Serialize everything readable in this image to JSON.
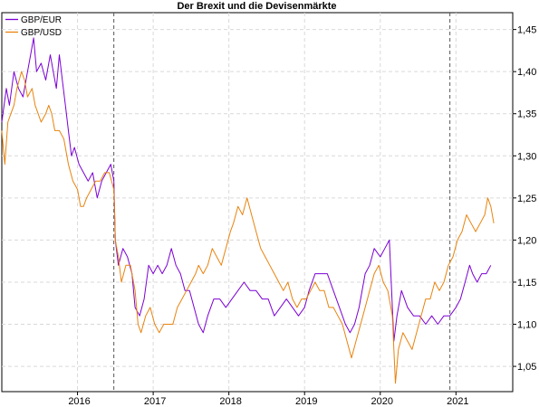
{
  "chart_data": {
    "type": "line",
    "title": "Der Brexit und die Devisenmärkte",
    "xlabel": "",
    "ylabel": "",
    "x_ticks": [
      "2016",
      "2017",
      "2018",
      "2019",
      "2020",
      "2021"
    ],
    "y_ticks": [
      "1,05",
      "1,10",
      "1,15",
      "1,20",
      "1,25",
      "1,30",
      "1,35",
      "1,40",
      "1,45"
    ],
    "ylim": [
      1.02,
      1.47
    ],
    "xlim": [
      2015.0,
      2021.75
    ],
    "y_axis_position": "right",
    "grid": true,
    "legend_position": "top-left",
    "events": [
      2016.48,
      2020.92
    ],
    "series": [
      {
        "name": "GBP/EUR",
        "color": "#7b00d4",
        "points": [
          [
            2015.0,
            1.34
          ],
          [
            2015.06,
            1.38
          ],
          [
            2015.1,
            1.36
          ],
          [
            2015.16,
            1.4
          ],
          [
            2015.22,
            1.38
          ],
          [
            2015.28,
            1.37
          ],
          [
            2015.34,
            1.4
          ],
          [
            2015.38,
            1.42
          ],
          [
            2015.42,
            1.44
          ],
          [
            2015.46,
            1.4
          ],
          [
            2015.52,
            1.41
          ],
          [
            2015.58,
            1.39
          ],
          [
            2015.64,
            1.42
          ],
          [
            2015.68,
            1.4
          ],
          [
            2015.72,
            1.38
          ],
          [
            2015.76,
            1.42
          ],
          [
            2015.8,
            1.39
          ],
          [
            2015.84,
            1.36
          ],
          [
            2015.88,
            1.33
          ],
          [
            2015.92,
            1.3
          ],
          [
            2015.96,
            1.31
          ],
          [
            2016.02,
            1.29
          ],
          [
            2016.08,
            1.28
          ],
          [
            2016.14,
            1.27
          ],
          [
            2016.2,
            1.28
          ],
          [
            2016.26,
            1.25
          ],
          [
            2016.32,
            1.27
          ],
          [
            2016.38,
            1.28
          ],
          [
            2016.44,
            1.29
          ],
          [
            2016.48,
            1.27
          ],
          [
            2016.5,
            1.2
          ],
          [
            2016.54,
            1.17
          ],
          [
            2016.6,
            1.19
          ],
          [
            2016.66,
            1.18
          ],
          [
            2016.72,
            1.16
          ],
          [
            2016.76,
            1.12
          ],
          [
            2016.82,
            1.11
          ],
          [
            2016.88,
            1.13
          ],
          [
            2016.94,
            1.17
          ],
          [
            2017.0,
            1.16
          ],
          [
            2017.06,
            1.17
          ],
          [
            2017.12,
            1.16
          ],
          [
            2017.18,
            1.17
          ],
          [
            2017.24,
            1.19
          ],
          [
            2017.3,
            1.17
          ],
          [
            2017.36,
            1.16
          ],
          [
            2017.42,
            1.14
          ],
          [
            2017.48,
            1.14
          ],
          [
            2017.54,
            1.12
          ],
          [
            2017.6,
            1.1
          ],
          [
            2017.66,
            1.09
          ],
          [
            2017.72,
            1.11
          ],
          [
            2017.8,
            1.13
          ],
          [
            2017.88,
            1.13
          ],
          [
            2017.96,
            1.12
          ],
          [
            2018.04,
            1.13
          ],
          [
            2018.12,
            1.14
          ],
          [
            2018.2,
            1.15
          ],
          [
            2018.28,
            1.14
          ],
          [
            2018.36,
            1.14
          ],
          [
            2018.44,
            1.13
          ],
          [
            2018.52,
            1.13
          ],
          [
            2018.6,
            1.11
          ],
          [
            2018.68,
            1.12
          ],
          [
            2018.76,
            1.13
          ],
          [
            2018.84,
            1.12
          ],
          [
            2018.92,
            1.11
          ],
          [
            2019.0,
            1.12
          ],
          [
            2019.06,
            1.14
          ],
          [
            2019.14,
            1.16
          ],
          [
            2019.22,
            1.16
          ],
          [
            2019.3,
            1.16
          ],
          [
            2019.38,
            1.14
          ],
          [
            2019.46,
            1.12
          ],
          [
            2019.54,
            1.1
          ],
          [
            2019.6,
            1.09
          ],
          [
            2019.66,
            1.1
          ],
          [
            2019.72,
            1.12
          ],
          [
            2019.8,
            1.16
          ],
          [
            2019.86,
            1.17
          ],
          [
            2019.92,
            1.19
          ],
          [
            2020.0,
            1.18
          ],
          [
            2020.06,
            1.19
          ],
          [
            2020.12,
            1.2
          ],
          [
            2020.18,
            1.08
          ],
          [
            2020.22,
            1.11
          ],
          [
            2020.28,
            1.14
          ],
          [
            2020.36,
            1.12
          ],
          [
            2020.44,
            1.11
          ],
          [
            2020.52,
            1.11
          ],
          [
            2020.6,
            1.1
          ],
          [
            2020.68,
            1.11
          ],
          [
            2020.76,
            1.1
          ],
          [
            2020.84,
            1.11
          ],
          [
            2020.92,
            1.11
          ],
          [
            2021.0,
            1.12
          ],
          [
            2021.06,
            1.13
          ],
          [
            2021.12,
            1.15
          ],
          [
            2021.18,
            1.17
          ],
          [
            2021.22,
            1.16
          ],
          [
            2021.28,
            1.15
          ],
          [
            2021.34,
            1.16
          ],
          [
            2021.4,
            1.16
          ],
          [
            2021.46,
            1.17
          ]
        ]
      },
      {
        "name": "GBP/USD",
        "color": "#e8830e",
        "points": [
          [
            2015.0,
            1.33
          ],
          [
            2015.04,
            1.29
          ],
          [
            2015.08,
            1.34
          ],
          [
            2015.12,
            1.35
          ],
          [
            2015.16,
            1.36
          ],
          [
            2015.2,
            1.38
          ],
          [
            2015.26,
            1.4
          ],
          [
            2015.3,
            1.39
          ],
          [
            2015.34,
            1.37
          ],
          [
            2015.4,
            1.38
          ],
          [
            2015.44,
            1.36
          ],
          [
            2015.48,
            1.35
          ],
          [
            2015.52,
            1.34
          ],
          [
            2015.58,
            1.35
          ],
          [
            2015.62,
            1.36
          ],
          [
            2015.66,
            1.35
          ],
          [
            2015.7,
            1.33
          ],
          [
            2015.76,
            1.33
          ],
          [
            2015.82,
            1.32
          ],
          [
            2015.88,
            1.29
          ],
          [
            2015.94,
            1.27
          ],
          [
            2016.0,
            1.26
          ],
          [
            2016.04,
            1.24
          ],
          [
            2016.08,
            1.24
          ],
          [
            2016.12,
            1.25
          ],
          [
            2016.18,
            1.26
          ],
          [
            2016.24,
            1.27
          ],
          [
            2016.3,
            1.27
          ],
          [
            2016.36,
            1.28
          ],
          [
            2016.42,
            1.28
          ],
          [
            2016.48,
            1.26
          ],
          [
            2016.5,
            1.2
          ],
          [
            2016.54,
            1.18
          ],
          [
            2016.58,
            1.15
          ],
          [
            2016.64,
            1.17
          ],
          [
            2016.7,
            1.17
          ],
          [
            2016.76,
            1.14
          ],
          [
            2016.8,
            1.1
          ],
          [
            2016.84,
            1.09
          ],
          [
            2016.9,
            1.11
          ],
          [
            2016.96,
            1.12
          ],
          [
            2017.02,
            1.1
          ],
          [
            2017.08,
            1.09
          ],
          [
            2017.14,
            1.1
          ],
          [
            2017.2,
            1.1
          ],
          [
            2017.26,
            1.1
          ],
          [
            2017.32,
            1.12
          ],
          [
            2017.38,
            1.13
          ],
          [
            2017.44,
            1.14
          ],
          [
            2017.5,
            1.15
          ],
          [
            2017.56,
            1.16
          ],
          [
            2017.6,
            1.17
          ],
          [
            2017.66,
            1.16
          ],
          [
            2017.72,
            1.17
          ],
          [
            2017.78,
            1.19
          ],
          [
            2017.84,
            1.18
          ],
          [
            2017.9,
            1.17
          ],
          [
            2017.96,
            1.19
          ],
          [
            2018.02,
            1.21
          ],
          [
            2018.06,
            1.22
          ],
          [
            2018.12,
            1.24
          ],
          [
            2018.18,
            1.23
          ],
          [
            2018.24,
            1.25
          ],
          [
            2018.3,
            1.23
          ],
          [
            2018.36,
            1.21
          ],
          [
            2018.42,
            1.19
          ],
          [
            2018.48,
            1.18
          ],
          [
            2018.54,
            1.17
          ],
          [
            2018.6,
            1.16
          ],
          [
            2018.66,
            1.15
          ],
          [
            2018.72,
            1.14
          ],
          [
            2018.78,
            1.15
          ],
          [
            2018.84,
            1.13
          ],
          [
            2018.9,
            1.12
          ],
          [
            2018.96,
            1.13
          ],
          [
            2019.02,
            1.13
          ],
          [
            2019.08,
            1.14
          ],
          [
            2019.14,
            1.15
          ],
          [
            2019.2,
            1.14
          ],
          [
            2019.26,
            1.14
          ],
          [
            2019.32,
            1.12
          ],
          [
            2019.38,
            1.12
          ],
          [
            2019.44,
            1.11
          ],
          [
            2019.5,
            1.1
          ],
          [
            2019.56,
            1.08
          ],
          [
            2019.62,
            1.06
          ],
          [
            2019.68,
            1.08
          ],
          [
            2019.74,
            1.1
          ],
          [
            2019.8,
            1.12
          ],
          [
            2019.86,
            1.14
          ],
          [
            2019.92,
            1.16
          ],
          [
            2019.98,
            1.17
          ],
          [
            2020.04,
            1.15
          ],
          [
            2020.1,
            1.14
          ],
          [
            2020.16,
            1.11
          ],
          [
            2020.2,
            1.03
          ],
          [
            2020.24,
            1.07
          ],
          [
            2020.3,
            1.09
          ],
          [
            2020.36,
            1.08
          ],
          [
            2020.42,
            1.07
          ],
          [
            2020.48,
            1.09
          ],
          [
            2020.54,
            1.11
          ],
          [
            2020.6,
            1.13
          ],
          [
            2020.66,
            1.13
          ],
          [
            2020.72,
            1.15
          ],
          [
            2020.78,
            1.14
          ],
          [
            2020.84,
            1.15
          ],
          [
            2020.9,
            1.17
          ],
          [
            2020.96,
            1.18
          ],
          [
            2021.02,
            1.2
          ],
          [
            2021.08,
            1.21
          ],
          [
            2021.14,
            1.23
          ],
          [
            2021.2,
            1.22
          ],
          [
            2021.26,
            1.21
          ],
          [
            2021.32,
            1.22
          ],
          [
            2021.38,
            1.23
          ],
          [
            2021.42,
            1.25
          ],
          [
            2021.46,
            1.24
          ],
          [
            2021.5,
            1.22
          ]
        ]
      }
    ]
  }
}
